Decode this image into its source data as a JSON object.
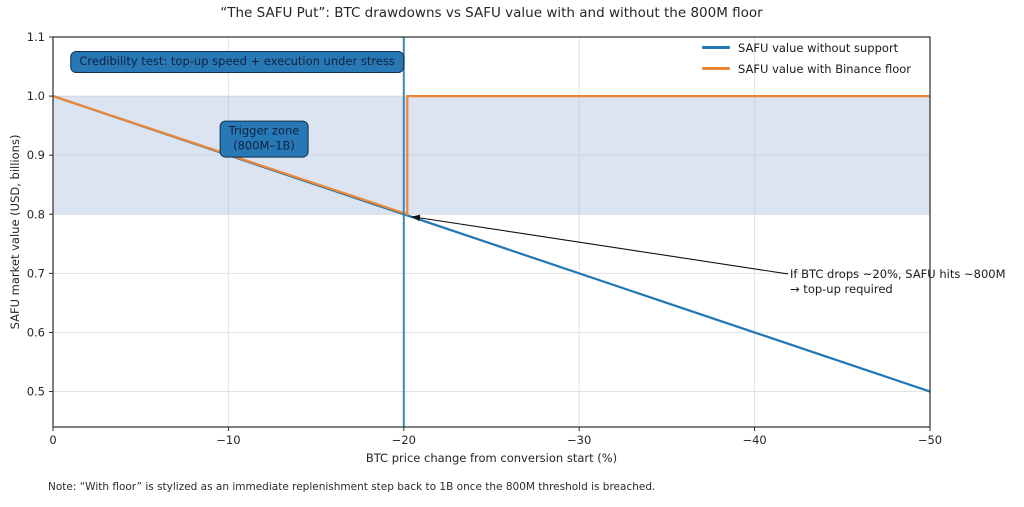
{
  "title": "“The SAFU Put”: BTC drawdowns vs SAFU value with and without the 800M floor",
  "note": "Note: “With floor” is stylized as an immediate replenishment step back to 1B once the 800M threshold is breached.",
  "chart_data": {
    "type": "line",
    "title": "“The SAFU Put”: BTC drawdowns vs SAFU value with and without the 800M floor",
    "xlabel": "BTC price change from conversion start (%)",
    "ylabel": "SAFU market value (USD, billions)",
    "xlim": [
      0,
      -50
    ],
    "ylim": [
      0.44,
      1.1
    ],
    "x_ticks": [
      0,
      -10,
      -20,
      -30,
      -40,
      -50
    ],
    "x_tick_labels": [
      "0",
      "−10",
      "−20",
      "−30",
      "−40",
      "−50"
    ],
    "y_ticks": [
      1.1,
      1.0,
      0.9,
      0.8,
      0.7,
      0.6,
      0.5
    ],
    "y_tick_labels": [
      "1.1",
      "1.0",
      "0.9",
      "0.8",
      "0.7",
      "0.6",
      "0.5"
    ],
    "grid": true,
    "grid_color": "#e2e2e2",
    "spine_color": "#2b2b2b",
    "band": {
      "y_from": 0.8,
      "y_to": 1.0,
      "color": "#b0c4de",
      "opacity": 0.45
    },
    "vline": {
      "x": -20,
      "color": "#2e80a8",
      "width": 2,
      "opacity": 0.9
    },
    "series": [
      {
        "name": "SAFU value without support",
        "color": "#2077b4",
        "width": 2.2,
        "points": [
          [
            0,
            1.0
          ],
          [
            -50,
            0.5
          ]
        ]
      },
      {
        "name": "SAFU value with Binance floor",
        "color": "#ee8532",
        "width": 2.2,
        "points": [
          [
            0,
            1.0
          ],
          [
            -20.2,
            0.8
          ],
          [
            -20.2,
            1.0
          ],
          [
            -50,
            1.0
          ]
        ]
      }
    ],
    "legend_position": "top-right",
    "annotations": [
      {
        "id": "credibility",
        "text": "Credibility test: top-up speed + execution under stress",
        "x": -10.5,
        "y": 1.058,
        "box_fill": "#2778b5",
        "box_border": "#14304e",
        "text_color": "#0c2340"
      },
      {
        "id": "trigger-zone",
        "lines": [
          "Trigger zone",
          "(800M–1B)"
        ],
        "x": -12.03,
        "y": 0.9274,
        "box_fill": "#2778b5",
        "box_border": "#14304e",
        "text_color": "#0c2340"
      },
      {
        "id": "topup-arrow",
        "lines": [
          "If BTC drops ~20%, SAFU hits ~800M",
          "→ top-up required"
        ],
        "text_x": -42.02,
        "text_y": 0.7115,
        "arrow_from": [
          -41.9,
          0.699
        ],
        "arrow_to": [
          -20.45,
          0.796
        ],
        "arrow_color": "#111111"
      }
    ]
  }
}
